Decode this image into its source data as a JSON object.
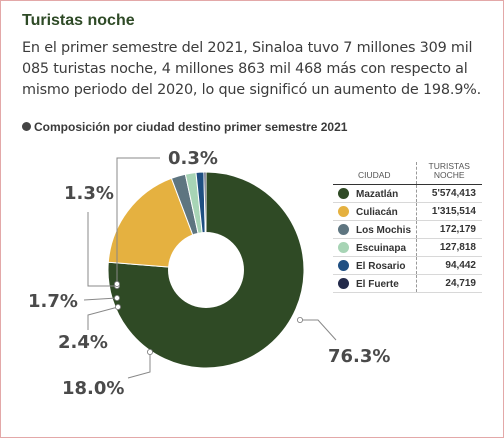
{
  "header": {
    "title": "Turistas noche",
    "lead": "En el primer semestre del 2021, Sinaloa tuvo 7 millones 309 mil 085 turistas noche, 4 millones 863 mil 468 más con respecto al mismo periodo del 2020, lo que significó un aumento de 198.9%."
  },
  "chart_data": {
    "type": "pie",
    "title": "Composición por ciudad destino primer semestre 2021",
    "legend_headers": {
      "city": "CIUDAD",
      "value": "TURISTAS NOCHE"
    },
    "categories": [
      "Mazatlán",
      "Culiacán",
      "Los Mochis",
      "Escuinapa",
      "El Rosario",
      "El Fuerte"
    ],
    "values": [
      5574413,
      1315514,
      172179,
      127818,
      94442,
      24719
    ],
    "value_labels": [
      "5'574,413",
      "1'315,514",
      "172,179",
      "127,818",
      "94,442",
      "24,719"
    ],
    "percent_labels": [
      "76.3%",
      "18.0%",
      "2.4%",
      "1.7%",
      "1.3%",
      "0.3%"
    ],
    "colors": [
      "#2f4a25",
      "#e5b140",
      "#5e7580",
      "#a7d4b5",
      "#1f4f82",
      "#232a4a"
    ]
  }
}
